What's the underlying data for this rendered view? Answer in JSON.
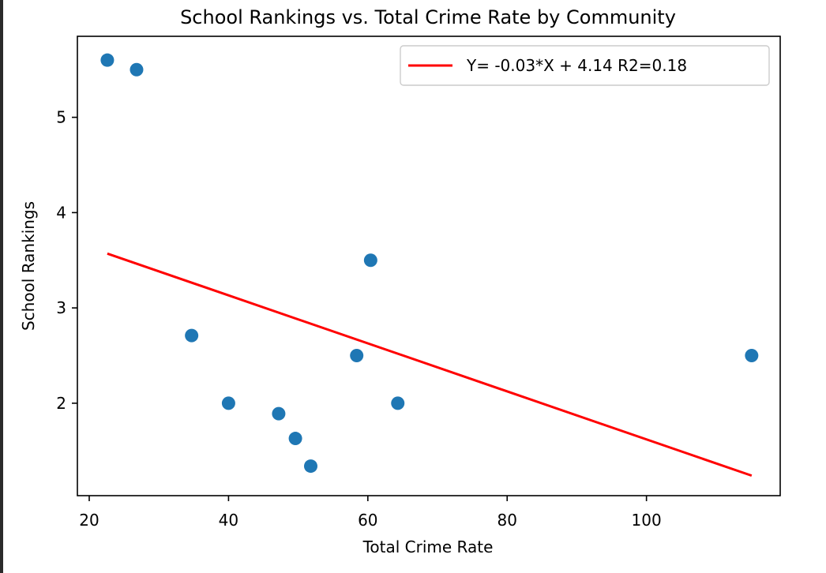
{
  "chart_data": {
    "type": "scatter",
    "title": "School Rankings vs. Total Crime Rate by Community",
    "xlabel": "Total Crime Rate",
    "ylabel": "School Rankings",
    "xlim": [
      18.3,
      119.2
    ],
    "ylim": [
      1.03,
      5.85
    ],
    "xticks": [
      20,
      40,
      60,
      80,
      100
    ],
    "yticks": [
      2,
      3,
      4,
      5
    ],
    "grid": false,
    "legend_position": "top-right",
    "series": [
      {
        "kind": "points",
        "color": "#1f77b4",
        "x": [
          22.6,
          26.8,
          34.7,
          40.0,
          47.2,
          49.6,
          51.8,
          58.4,
          60.4,
          64.3,
          115.1
        ],
        "y": [
          5.6,
          5.5,
          2.71,
          2.0,
          1.89,
          1.63,
          1.34,
          2.5,
          3.5,
          2.0,
          2.5
        ]
      },
      {
        "kind": "line",
        "name": "Y= -0.03*X + 4.14 R2=0.18",
        "color": "#ff0000",
        "x": [
          22.6,
          115.1
        ],
        "y": [
          3.57,
          1.24
        ]
      }
    ]
  }
}
